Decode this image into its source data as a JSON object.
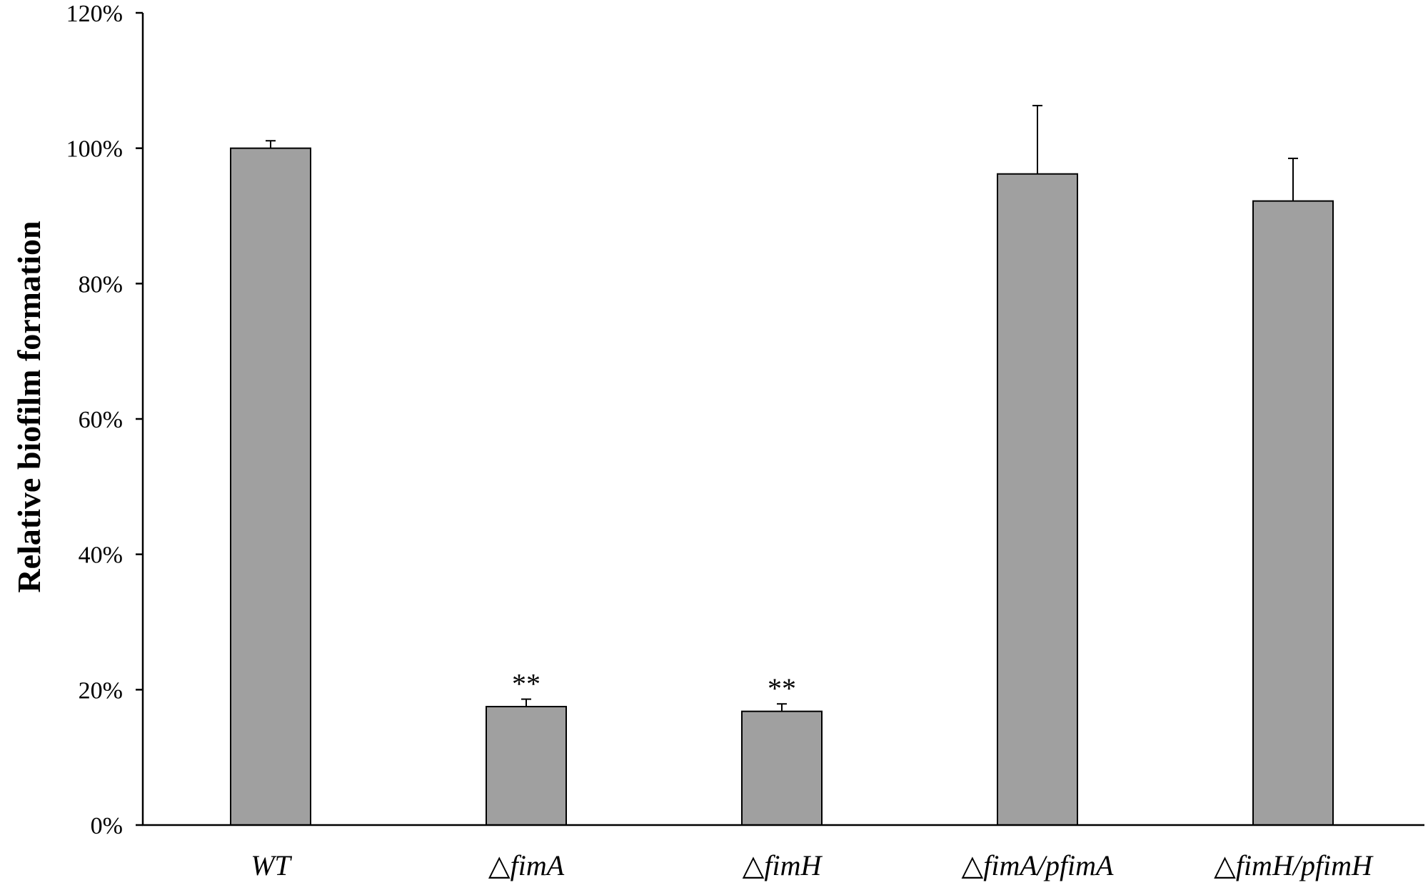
{
  "chart_data": {
    "type": "bar",
    "title": "",
    "xlabel": "",
    "ylabel": "Relative biofilm formation",
    "ylim": [
      0,
      1.2
    ],
    "yticks": [
      "0%",
      "20%",
      "40%",
      "60%",
      "80%",
      "100%",
      "120%"
    ],
    "grid": false,
    "legend": "none",
    "bar_color": "#a0a0a0",
    "categories": [
      "WT",
      "△fimA",
      "△fimH",
      "△fimA/pfimA",
      "△fimH/pfimH"
    ],
    "values": [
      1.0,
      0.175,
      0.168,
      0.962,
      0.922
    ],
    "errors": [
      0.011,
      0.011,
      0.011,
      0.101,
      0.063
    ],
    "annotations": [
      "",
      "**",
      "**",
      "",
      ""
    ]
  }
}
